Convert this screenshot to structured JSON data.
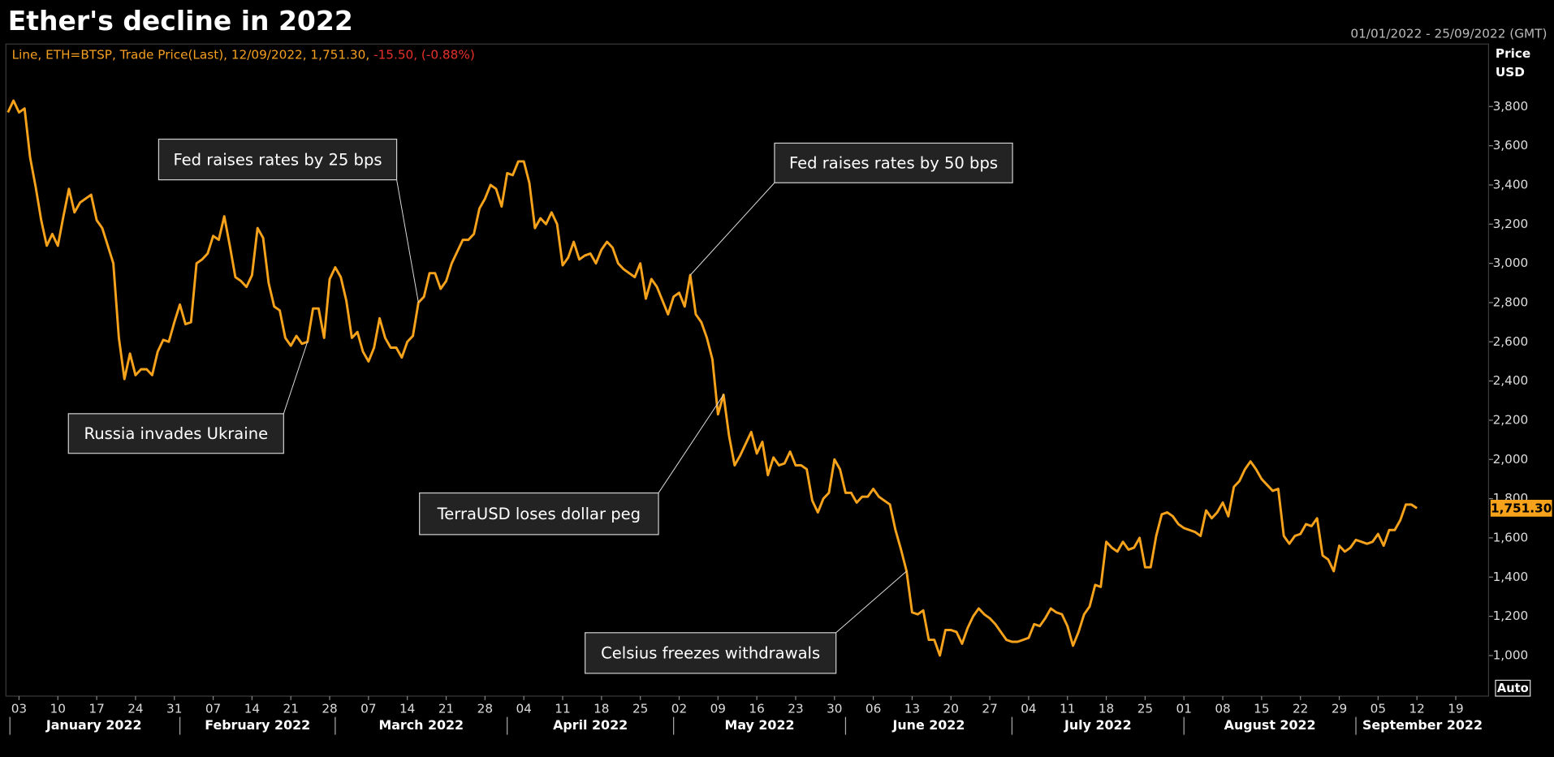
{
  "chart_data": {
    "type": "line",
    "title": "Ether's decline in 2022",
    "date_range": "01/01/2022 - 25/09/2022 (GMT)",
    "header": {
      "text": "Line, ETH=BTSP, Trade Price(Last), 12/09/2022, 1,751.30,",
      "change": "-15.50, (-0.88%)"
    },
    "y_axis_label": [
      "Price",
      "USD"
    ],
    "button": "Auto",
    "color": "#f7a21b",
    "last_value_label": "1,751.30",
    "x": [
      "2022-01-01",
      "2022-01-02",
      "2022-01-03",
      "2022-01-04",
      "2022-01-05",
      "2022-01-06",
      "2022-01-07",
      "2022-01-08",
      "2022-01-09",
      "2022-01-10",
      "2022-01-11",
      "2022-01-12",
      "2022-01-13",
      "2022-01-14",
      "2022-01-15",
      "2022-01-16",
      "2022-01-17",
      "2022-01-18",
      "2022-01-19",
      "2022-01-20",
      "2022-01-21",
      "2022-01-22",
      "2022-01-23",
      "2022-01-24",
      "2022-01-25",
      "2022-01-26",
      "2022-01-27",
      "2022-01-28",
      "2022-01-29",
      "2022-01-30",
      "2022-01-31",
      "2022-02-01",
      "2022-02-02",
      "2022-02-03",
      "2022-02-04",
      "2022-02-05",
      "2022-02-06",
      "2022-02-07",
      "2022-02-08",
      "2022-02-09",
      "2022-02-10",
      "2022-02-11",
      "2022-02-12",
      "2022-02-13",
      "2022-02-14",
      "2022-02-15",
      "2022-02-16",
      "2022-02-17",
      "2022-02-18",
      "2022-02-19",
      "2022-02-20",
      "2022-02-21",
      "2022-02-22",
      "2022-02-23",
      "2022-02-24",
      "2022-02-25",
      "2022-02-26",
      "2022-02-27",
      "2022-02-28",
      "2022-03-01",
      "2022-03-02",
      "2022-03-03",
      "2022-03-04",
      "2022-03-05",
      "2022-03-06",
      "2022-03-07",
      "2022-03-08",
      "2022-03-09",
      "2022-03-10",
      "2022-03-11",
      "2022-03-12",
      "2022-03-13",
      "2022-03-14",
      "2022-03-15",
      "2022-03-16",
      "2022-03-17",
      "2022-03-18",
      "2022-03-19",
      "2022-03-20",
      "2022-03-21",
      "2022-03-22",
      "2022-03-23",
      "2022-03-24",
      "2022-03-25",
      "2022-03-26",
      "2022-03-27",
      "2022-03-28",
      "2022-03-29",
      "2022-03-30",
      "2022-03-31",
      "2022-04-01",
      "2022-04-02",
      "2022-04-03",
      "2022-04-04",
      "2022-04-05",
      "2022-04-06",
      "2022-04-07",
      "2022-04-08",
      "2022-04-09",
      "2022-04-10",
      "2022-04-11",
      "2022-04-12",
      "2022-04-13",
      "2022-04-14",
      "2022-04-15",
      "2022-04-16",
      "2022-04-17",
      "2022-04-18",
      "2022-04-19",
      "2022-04-20",
      "2022-04-21",
      "2022-04-22",
      "2022-04-23",
      "2022-04-24",
      "2022-04-25",
      "2022-04-26",
      "2022-04-27",
      "2022-04-28",
      "2022-04-29",
      "2022-04-30",
      "2022-05-01",
      "2022-05-02",
      "2022-05-03",
      "2022-05-04",
      "2022-05-05",
      "2022-05-06",
      "2022-05-07",
      "2022-05-08",
      "2022-05-09",
      "2022-05-10",
      "2022-05-11",
      "2022-05-12",
      "2022-05-13",
      "2022-05-14",
      "2022-05-15",
      "2022-05-16",
      "2022-05-17",
      "2022-05-18",
      "2022-05-19",
      "2022-05-20",
      "2022-05-21",
      "2022-05-22",
      "2022-05-23",
      "2022-05-24",
      "2022-05-25",
      "2022-05-26",
      "2022-05-27",
      "2022-05-28",
      "2022-05-29",
      "2022-05-30",
      "2022-05-31",
      "2022-06-01",
      "2022-06-02",
      "2022-06-03",
      "2022-06-04",
      "2022-06-05",
      "2022-06-06",
      "2022-06-07",
      "2022-06-08",
      "2022-06-09",
      "2022-06-10",
      "2022-06-11",
      "2022-06-12",
      "2022-06-13",
      "2022-06-14",
      "2022-06-15",
      "2022-06-16",
      "2022-06-17",
      "2022-06-18",
      "2022-06-19",
      "2022-06-20",
      "2022-06-21",
      "2022-06-22",
      "2022-06-23",
      "2022-06-24",
      "2022-06-25",
      "2022-06-26",
      "2022-06-27",
      "2022-06-28",
      "2022-06-29",
      "2022-06-30",
      "2022-07-01",
      "2022-07-02",
      "2022-07-03",
      "2022-07-04",
      "2022-07-05",
      "2022-07-06",
      "2022-07-07",
      "2022-07-08",
      "2022-07-09",
      "2022-07-10",
      "2022-07-11",
      "2022-07-12",
      "2022-07-13",
      "2022-07-14",
      "2022-07-15",
      "2022-07-16",
      "2022-07-17",
      "2022-07-18",
      "2022-07-19",
      "2022-07-20",
      "2022-07-21",
      "2022-07-22",
      "2022-07-23",
      "2022-07-24",
      "2022-07-25",
      "2022-07-26",
      "2022-07-27",
      "2022-07-28",
      "2022-07-29",
      "2022-07-30",
      "2022-07-31",
      "2022-08-01",
      "2022-08-02",
      "2022-08-03",
      "2022-08-04",
      "2022-08-05",
      "2022-08-06",
      "2022-08-07",
      "2022-08-08",
      "2022-08-09",
      "2022-08-10",
      "2022-08-11",
      "2022-08-12",
      "2022-08-13",
      "2022-08-14",
      "2022-08-15",
      "2022-08-16",
      "2022-08-17",
      "2022-08-18",
      "2022-08-19",
      "2022-08-20",
      "2022-08-21",
      "2022-08-22",
      "2022-08-23",
      "2022-08-24",
      "2022-08-25",
      "2022-08-26",
      "2022-08-27",
      "2022-08-28",
      "2022-08-29",
      "2022-08-30",
      "2022-08-31",
      "2022-09-01",
      "2022-09-02",
      "2022-09-03",
      "2022-09-04",
      "2022-09-05",
      "2022-09-06",
      "2022-09-07",
      "2022-09-08",
      "2022-09-09",
      "2022-09-10",
      "2022-09-11",
      "2022-09-12"
    ],
    "values": [
      3770,
      3830,
      3770,
      3790,
      3540,
      3390,
      3220,
      3090,
      3150,
      3090,
      3240,
      3380,
      3260,
      3310,
      3330,
      3350,
      3220,
      3180,
      3090,
      3000,
      2620,
      2410,
      2540,
      2430,
      2460,
      2460,
      2430,
      2550,
      2610,
      2600,
      2700,
      2790,
      2690,
      2700,
      3000,
      3020,
      3050,
      3140,
      3120,
      3240,
      3090,
      2930,
      2910,
      2880,
      2940,
      3180,
      3130,
      2900,
      2780,
      2760,
      2620,
      2580,
      2630,
      2590,
      2600,
      2770,
      2770,
      2620,
      2920,
      2980,
      2930,
      2810,
      2620,
      2650,
      2550,
      2500,
      2570,
      2720,
      2620,
      2570,
      2570,
      2520,
      2600,
      2630,
      2800,
      2830,
      2950,
      2950,
      2870,
      2910,
      3000,
      3060,
      3120,
      3120,
      3150,
      3280,
      3330,
      3400,
      3380,
      3290,
      3460,
      3450,
      3520,
      3520,
      3410,
      3180,
      3230,
      3200,
      3260,
      3200,
      2990,
      3030,
      3110,
      3020,
      3040,
      3050,
      3000,
      3070,
      3110,
      3080,
      3000,
      2970,
      2950,
      2930,
      3000,
      2820,
      2920,
      2880,
      2810,
      2740,
      2830,
      2850,
      2780,
      2940,
      2740,
      2700,
      2620,
      2510,
      2230,
      2330,
      2120,
      1970,
      2020,
      2080,
      2140,
      2030,
      2090,
      1920,
      2010,
      1970,
      1980,
      2040,
      1970,
      1970,
      1950,
      1790,
      1730,
      1800,
      1830,
      2000,
      1950,
      1830,
      1830,
      1780,
      1810,
      1810,
      1850,
      1810,
      1790,
      1770,
      1640,
      1540,
      1430,
      1220,
      1210,
      1230,
      1080,
      1080,
      1000,
      1130,
      1130,
      1120,
      1060,
      1140,
      1200,
      1240,
      1210,
      1190,
      1160,
      1120,
      1080,
      1070,
      1070,
      1080,
      1090,
      1160,
      1150,
      1190,
      1240,
      1220,
      1210,
      1150,
      1050,
      1120,
      1210,
      1250,
      1360,
      1350,
      1580,
      1550,
      1530,
      1580,
      1540,
      1550,
      1600,
      1450,
      1450,
      1610,
      1720,
      1730,
      1710,
      1670,
      1650,
      1640,
      1630,
      1610,
      1740,
      1700,
      1730,
      1780,
      1710,
      1860,
      1890,
      1950,
      1990,
      1950,
      1900,
      1870,
      1840,
      1850,
      1610,
      1570,
      1610,
      1620,
      1670,
      1660,
      1700,
      1510,
      1490,
      1430,
      1560,
      1530,
      1550,
      1590,
      1580,
      1570,
      1580,
      1620,
      1560,
      1640,
      1640,
      1690,
      1770,
      1770,
      1751.3
    ],
    "xlim": [
      "2022-01-01",
      "2022-09-25"
    ],
    "xticks": [
      {
        "value": "2022-01-03",
        "label": "03"
      },
      {
        "value": "2022-01-10",
        "label": "10"
      },
      {
        "value": "2022-01-17",
        "label": "17"
      },
      {
        "value": "2022-01-24",
        "label": "24"
      },
      {
        "value": "2022-01-31",
        "label": "31"
      },
      {
        "value": "2022-02-07",
        "label": "07"
      },
      {
        "value": "2022-02-14",
        "label": "14"
      },
      {
        "value": "2022-02-21",
        "label": "21"
      },
      {
        "value": "2022-02-28",
        "label": "28"
      },
      {
        "value": "2022-03-07",
        "label": "07"
      },
      {
        "value": "2022-03-14",
        "label": "14"
      },
      {
        "value": "2022-03-21",
        "label": "21"
      },
      {
        "value": "2022-03-28",
        "label": "28"
      },
      {
        "value": "2022-04-04",
        "label": "04"
      },
      {
        "value": "2022-04-11",
        "label": "11"
      },
      {
        "value": "2022-04-18",
        "label": "18"
      },
      {
        "value": "2022-04-25",
        "label": "25"
      },
      {
        "value": "2022-05-02",
        "label": "02"
      },
      {
        "value": "2022-05-09",
        "label": "09"
      },
      {
        "value": "2022-05-16",
        "label": "16"
      },
      {
        "value": "2022-05-23",
        "label": "23"
      },
      {
        "value": "2022-05-30",
        "label": "30"
      },
      {
        "value": "2022-06-06",
        "label": "06"
      },
      {
        "value": "2022-06-13",
        "label": "13"
      },
      {
        "value": "2022-06-20",
        "label": "20"
      },
      {
        "value": "2022-06-27",
        "label": "27"
      },
      {
        "value": "2022-07-04",
        "label": "04"
      },
      {
        "value": "2022-07-11",
        "label": "11"
      },
      {
        "value": "2022-07-18",
        "label": "18"
      },
      {
        "value": "2022-07-25",
        "label": "25"
      },
      {
        "value": "2022-08-01",
        "label": "01"
      },
      {
        "value": "2022-08-08",
        "label": "08"
      },
      {
        "value": "2022-08-15",
        "label": "15"
      },
      {
        "value": "2022-08-22",
        "label": "22"
      },
      {
        "value": "2022-08-29",
        "label": "29"
      },
      {
        "value": "2022-09-05",
        "label": "05"
      },
      {
        "value": "2022-09-12",
        "label": "12"
      },
      {
        "value": "2022-09-19",
        "label": "19"
      }
    ],
    "months": [
      {
        "value": "2022-01-01",
        "label": "January 2022"
      },
      {
        "value": "2022-02-01",
        "label": "February 2022"
      },
      {
        "value": "2022-03-01",
        "label": "March 2022"
      },
      {
        "value": "2022-04-01",
        "label": "April 2022"
      },
      {
        "value": "2022-05-01",
        "label": "May 2022"
      },
      {
        "value": "2022-06-01",
        "label": "June 2022"
      },
      {
        "value": "2022-07-01",
        "label": "July 2022"
      },
      {
        "value": "2022-08-01",
        "label": "August 2022"
      },
      {
        "value": "2022-09-01",
        "label": "September 2022"
      }
    ],
    "ylim": [
      800,
      4100
    ],
    "yticks": [
      {
        "value": 1000,
        "label": "1,000"
      },
      {
        "value": 1200,
        "label": "1,200"
      },
      {
        "value": 1400,
        "label": "1,400"
      },
      {
        "value": 1600,
        "label": "1,600"
      },
      {
        "value": 1800,
        "label": "1,800"
      },
      {
        "value": 2000,
        "label": "2,000"
      },
      {
        "value": 2200,
        "label": "2,200"
      },
      {
        "value": 2400,
        "label": "2,400"
      },
      {
        "value": 2600,
        "label": "2,600"
      },
      {
        "value": 2800,
        "label": "2,800"
      },
      {
        "value": 3000,
        "label": "3,000"
      },
      {
        "value": 3200,
        "label": "3,200"
      },
      {
        "value": 3400,
        "label": "3,400"
      },
      {
        "value": 3600,
        "label": "3,600"
      },
      {
        "value": 3800,
        "label": "3,800"
      }
    ],
    "grid": false,
    "annotations": [
      {
        "text": "Fed raises rates by 25 bps",
        "x": "2022-03-16"
      },
      {
        "text": "Fed raises rates by 50 bps",
        "x": "2022-05-04"
      },
      {
        "text": "Russia invades Ukraine",
        "x": "2022-02-24"
      },
      {
        "text": "TerraUSD loses dollar peg",
        "x": "2022-05-10"
      },
      {
        "text": "Celsius freezes withdrawals",
        "x": "2022-06-12"
      }
    ]
  }
}
